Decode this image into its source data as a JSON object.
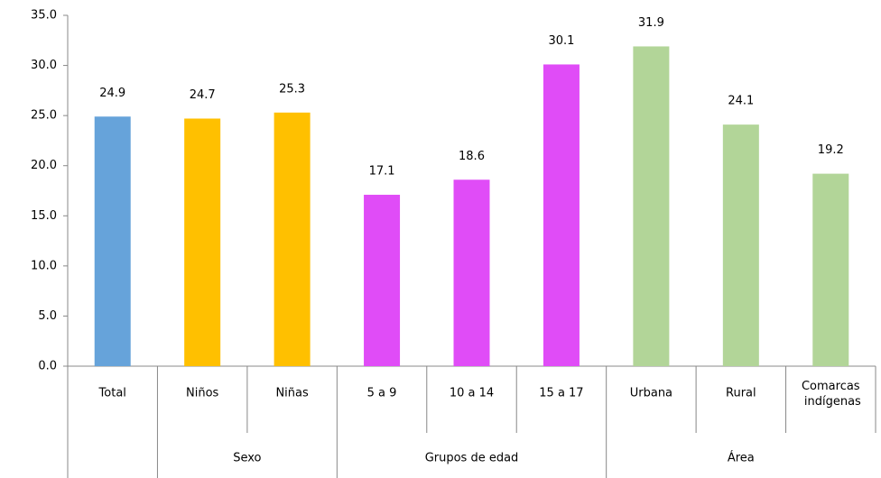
{
  "chart_data": {
    "type": "bar",
    "categories": [
      "Total",
      "Niños",
      "Niñas",
      "5 a 9",
      "10 a 14",
      "15 a 17",
      "Urbana",
      "Rural",
      "Comarcas indígenas"
    ],
    "groups": [
      null,
      "Sexo",
      "Sexo",
      "Grupos de edad",
      "Grupos de edad",
      "Grupos de edad",
      "Área",
      "Área",
      "Área"
    ],
    "values": [
      24.9,
      24.7,
      25.3,
      17.1,
      18.6,
      30.1,
      31.9,
      24.1,
      19.2
    ],
    "colors": [
      "#66a3da",
      "#ffc000",
      "#ffc000",
      "#e04cf7",
      "#e04cf7",
      "#e04cf7",
      "#b2d598",
      "#b2d598",
      "#b2d598"
    ],
    "ylim": [
      0,
      35
    ],
    "yticks": [
      {
        "value": 0,
        "label": "0.0"
      },
      {
        "value": 5,
        "label": "5.0"
      },
      {
        "value": 10,
        "label": "10.0"
      },
      {
        "value": 15,
        "label": "15.0"
      },
      {
        "value": 20,
        "label": "20.0"
      },
      {
        "value": 25,
        "label": "25.0"
      },
      {
        "value": 30,
        "label": "30.0"
      },
      {
        "value": 35,
        "label": "35.0"
      }
    ],
    "grid": false
  }
}
